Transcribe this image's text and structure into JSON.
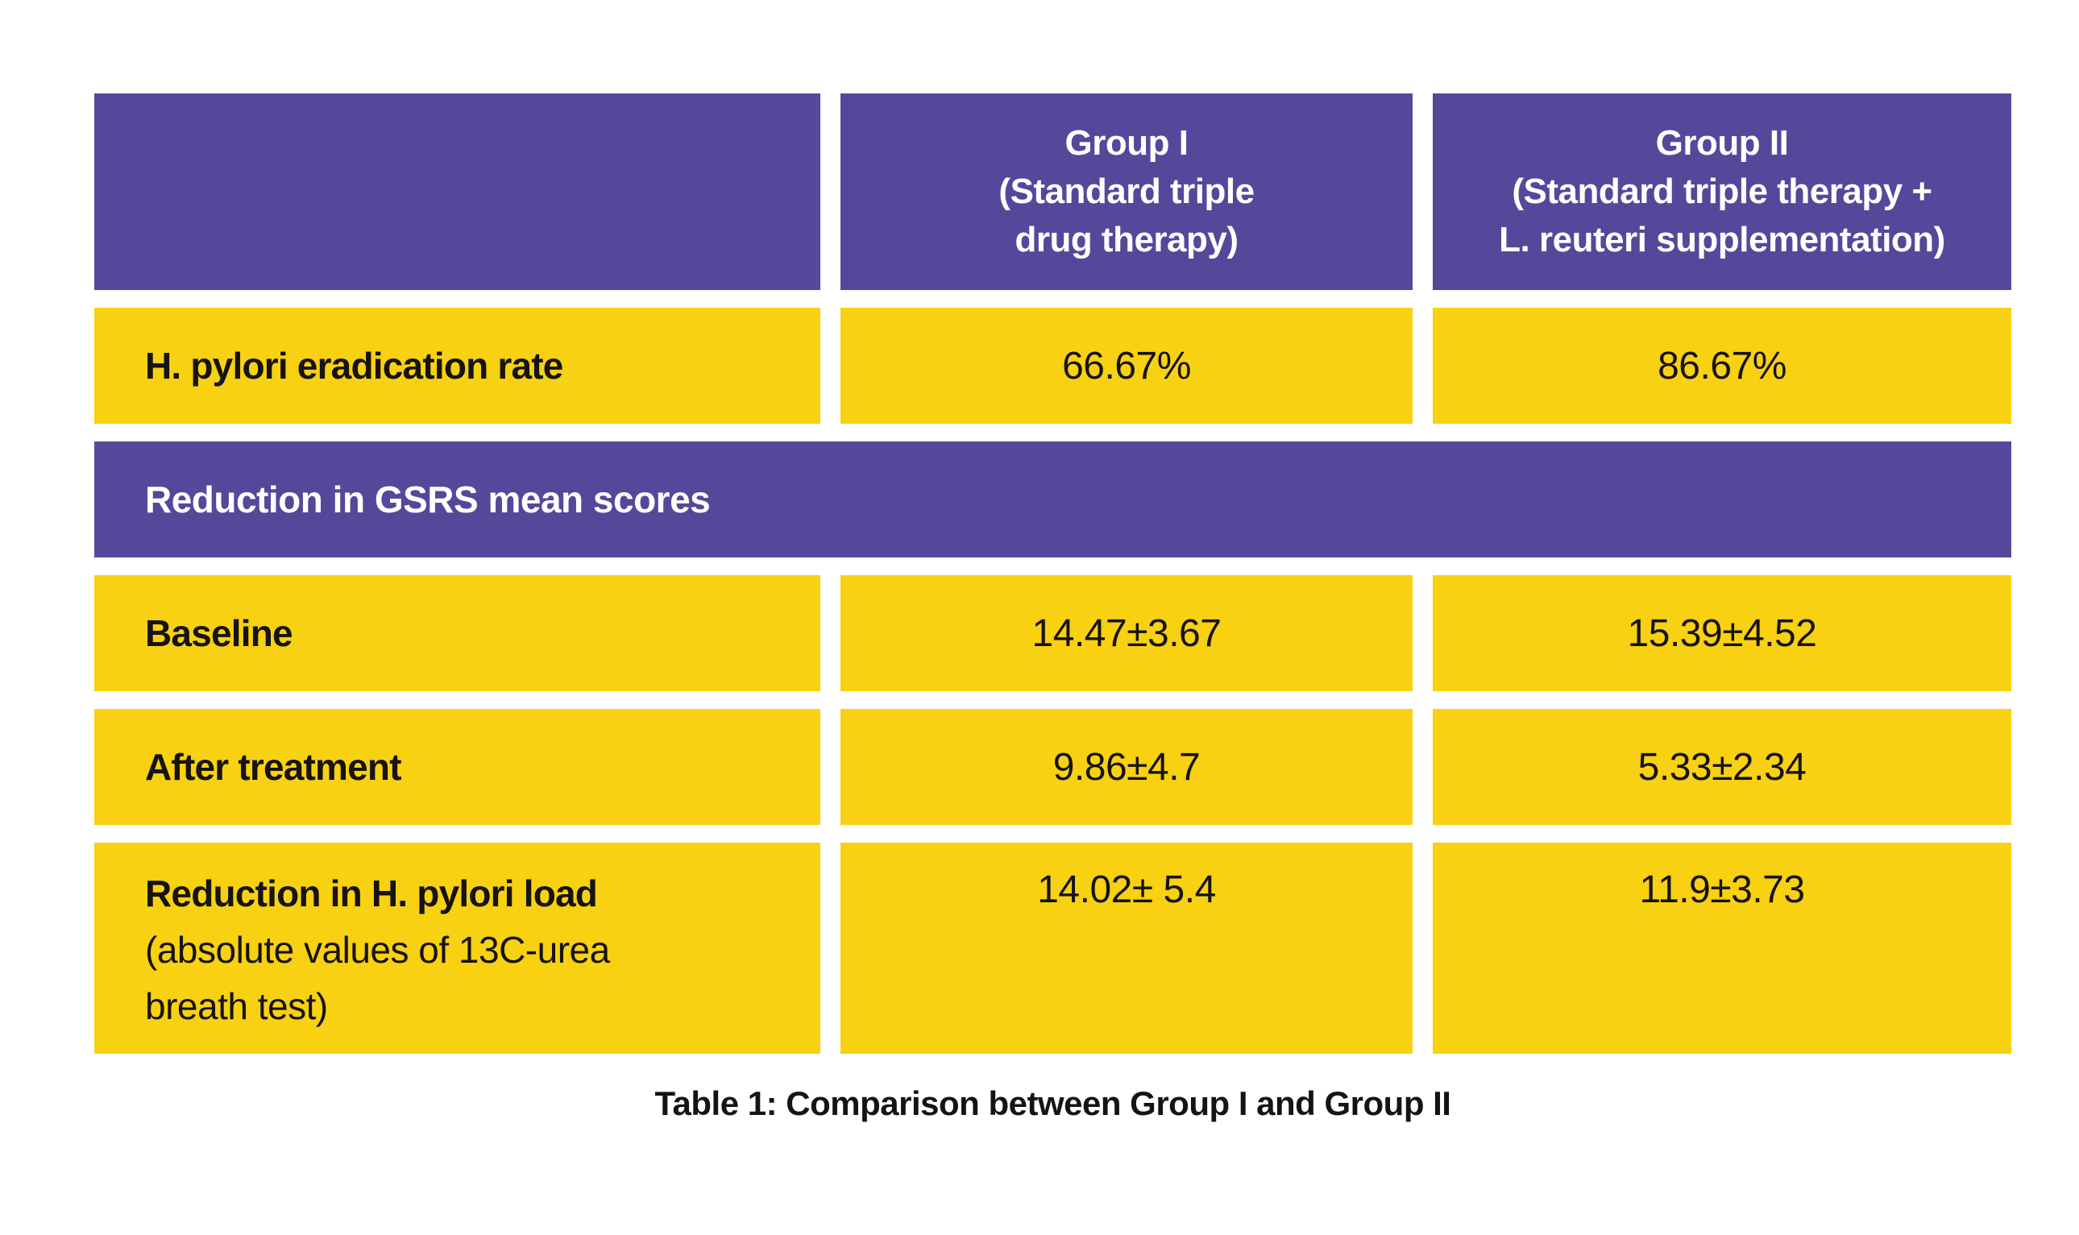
{
  "colors": {
    "header_purple": "#55489A",
    "cell_yellow": "#F7D112",
    "header_text": "#FFFFFF",
    "body_text": "#161311",
    "background": "#FFFFFF"
  },
  "header": {
    "corner": "",
    "group1": {
      "line1": "Group I",
      "line2": "(Standard triple",
      "line3": "drug therapy)"
    },
    "group2": {
      "line1": "Group II",
      "line2": "(Standard triple therapy +",
      "line3": "L. reuteri supplementation)"
    }
  },
  "rows": {
    "eradication": {
      "label": "H. pylori eradication rate",
      "group1": "66.67%",
      "group2": "86.67%"
    },
    "gsrs_section": {
      "label": "Reduction in GSRS mean scores"
    },
    "baseline": {
      "label": "Baseline",
      "group1": "14.47±3.67",
      "group2": "15.39±4.52"
    },
    "after_treatment": {
      "label": "After treatment",
      "group1": "9.86±4.7",
      "group2": "5.33±2.34"
    },
    "pylori_load": {
      "label_main": "Reduction in H. pylori load",
      "label_sub_line1": "(absolute values of 13C-urea",
      "label_sub_line2": "breath test)",
      "group1": "14.02± 5.4",
      "group2": "11.9±3.73"
    }
  },
  "caption": "Table 1: Comparison between Group I and Group II",
  "chart_data": {
    "type": "table",
    "title": "Table 1: Comparison between Group I and Group II",
    "columns": [
      "",
      "Group I (Standard triple drug therapy)",
      "Group II (Standard triple therapy + L. reuteri supplementation)"
    ],
    "rows": [
      [
        "H. pylori eradication rate",
        "66.67%",
        "86.67%"
      ],
      [
        "Reduction in GSRS mean scores",
        "",
        ""
      ],
      [
        "Baseline",
        "14.47±3.67",
        "15.39±4.52"
      ],
      [
        "After treatment",
        "9.86±4.7",
        "5.33±2.34"
      ],
      [
        "Reduction in H. pylori load (absolute values of 13C-urea breath test)",
        "14.02± 5.4",
        "11.9±3.73"
      ]
    ]
  }
}
